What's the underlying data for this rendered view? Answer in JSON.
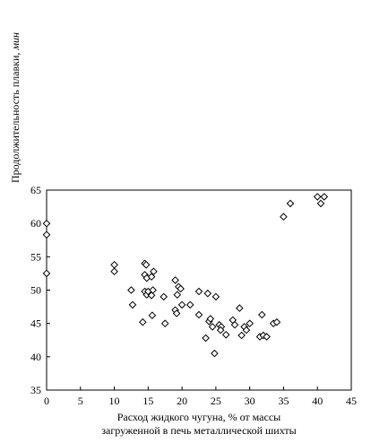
{
  "chart_data": {
    "type": "scatter",
    "ylabel_main": "Продолжительность плавки, ",
    "ylabel_unit": "мин",
    "xlabel_line1": "Расход жидкого чугуна, % от массы",
    "xlabel_line2": "загруженной в печь металлической шихты",
    "xlim": [
      0,
      45
    ],
    "ylim": [
      35,
      65
    ],
    "xticks": [
      "0",
      "5",
      "10",
      "15",
      "20",
      "25",
      "30",
      "35",
      "40",
      "45"
    ],
    "yticks": [
      "35",
      "40",
      "45",
      "50",
      "55",
      "60",
      "65"
    ],
    "grid": false,
    "marker": "diamond",
    "colors": {
      "marker_edge": "#000000",
      "marker_fill": "#ffffff",
      "axis": "#000000"
    },
    "points": [
      [
        0.0,
        60.0
      ],
      [
        0.0,
        58.3
      ],
      [
        0.0,
        52.5
      ],
      [
        35.0,
        61.0
      ],
      [
        36.0,
        63.0
      ],
      [
        40.0,
        64.0
      ],
      [
        40.5,
        63.0
      ],
      [
        41.0,
        64.0
      ],
      [
        10.0,
        53.8
      ],
      [
        10.0,
        52.8
      ],
      [
        12.5,
        50.0
      ],
      [
        12.7,
        47.8
      ],
      [
        14.5,
        54.0
      ],
      [
        14.7,
        53.8
      ],
      [
        14.5,
        52.3
      ],
      [
        14.8,
        51.8
      ],
      [
        14.5,
        49.8
      ],
      [
        14.8,
        49.3
      ],
      [
        14.2,
        45.2
      ],
      [
        15.0,
        49.8
      ],
      [
        15.5,
        52.0
      ],
      [
        15.8,
        52.8
      ],
      [
        15.7,
        50.0
      ],
      [
        15.5,
        49.2
      ],
      [
        15.6,
        46.2
      ],
      [
        17.3,
        49.0
      ],
      [
        17.5,
        45.0
      ],
      [
        19.0,
        51.5
      ],
      [
        19.0,
        47.0
      ],
      [
        19.5,
        50.5
      ],
      [
        19.3,
        49.3
      ],
      [
        19.8,
        50.2
      ],
      [
        20.0,
        47.8
      ],
      [
        19.2,
        46.5
      ],
      [
        21.2,
        47.8
      ],
      [
        22.5,
        49.8
      ],
      [
        22.5,
        46.3
      ],
      [
        23.8,
        49.5
      ],
      [
        23.5,
        42.8
      ],
      [
        24.0,
        45.3
      ],
      [
        24.5,
        44.5
      ],
      [
        24.2,
        45.7
      ],
      [
        25.0,
        49.0
      ],
      [
        25.5,
        44.8
      ],
      [
        25.8,
        44.5
      ],
      [
        25.7,
        44.0
      ],
      [
        24.8,
        40.5
      ],
      [
        26.5,
        43.3
      ],
      [
        27.5,
        45.5
      ],
      [
        27.8,
        44.8
      ],
      [
        28.5,
        47.3
      ],
      [
        28.8,
        43.2
      ],
      [
        29.2,
        44.5
      ],
      [
        29.5,
        44.0
      ],
      [
        30.0,
        45.0
      ],
      [
        31.5,
        43.0
      ],
      [
        31.8,
        46.3
      ],
      [
        32.0,
        43.2
      ],
      [
        32.5,
        43.0
      ],
      [
        33.5,
        45.0
      ],
      [
        34.0,
        45.2
      ]
    ]
  }
}
